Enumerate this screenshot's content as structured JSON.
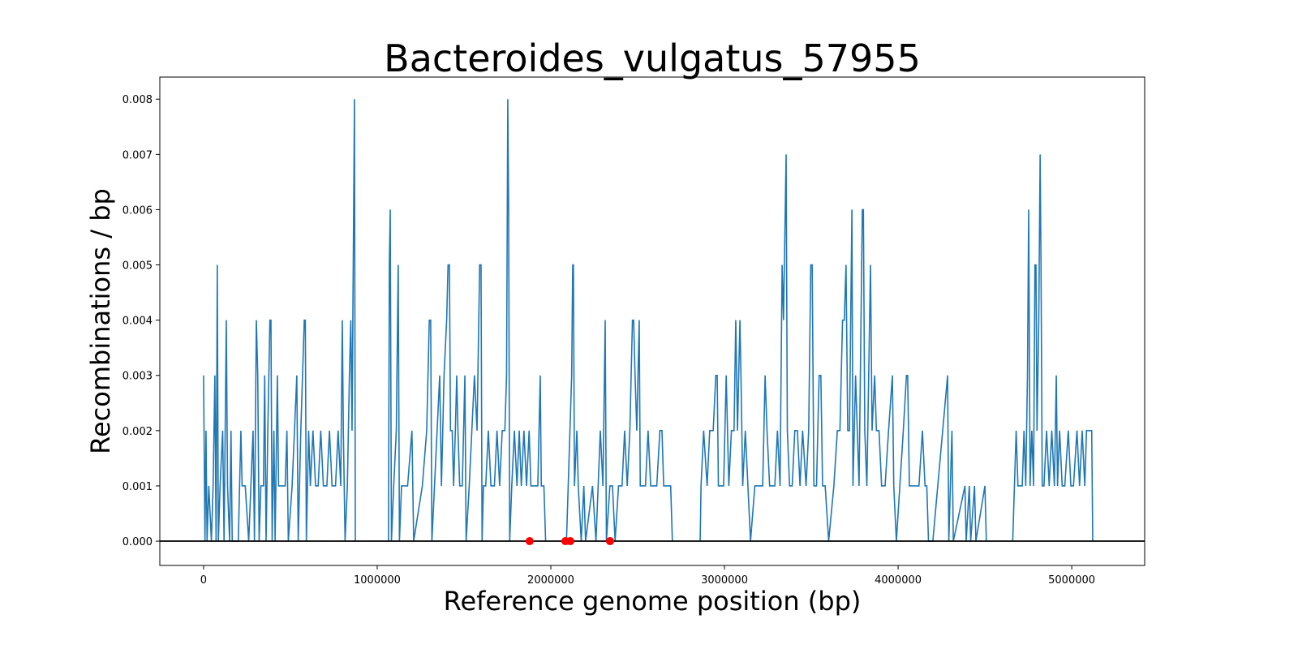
{
  "chart_data": {
    "type": "line",
    "title": "Bacteroides_vulgatus_57955",
    "xlabel": "Reference genome position (bp)",
    "ylabel": "Recombinations / bp",
    "xlim": [
      -252000,
      5420000
    ],
    "ylim": [
      -0.00044,
      0.0084
    ],
    "xticks": [
      0,
      1000000,
      2000000,
      3000000,
      4000000,
      5000000
    ],
    "yticks": [
      {
        "value": 0,
        "label": "0.000"
      },
      {
        "value": 0.001,
        "label": "0.001"
      },
      {
        "value": 0.002,
        "label": "0.002"
      },
      {
        "value": 0.003,
        "label": "0.003"
      },
      {
        "value": 0.004,
        "label": "0.004"
      },
      {
        "value": 0.005,
        "label": "0.005"
      },
      {
        "value": 0.006,
        "label": "0.006"
      },
      {
        "value": 0.007,
        "label": "0.007"
      },
      {
        "value": 0.008,
        "label": "0.008"
      }
    ],
    "hline": 0,
    "hline_color": "#000000",
    "series": [
      {
        "color": "#1f77b4",
        "x": [
          0,
          8000,
          14000,
          20000,
          30000,
          45000,
          55000,
          65000,
          72000,
          79000,
          85000,
          95000,
          110000,
          118000,
          131000,
          138000,
          150000,
          158000,
          165000,
          200000,
          215000,
          222000,
          240000,
          260000,
          285000,
          293000,
          304000,
          312000,
          320000,
          330000,
          345000,
          352000,
          360000,
          370000,
          382000,
          388000,
          395000,
          405000,
          412000,
          425000,
          432000,
          450000,
          470000,
          480000,
          488000,
          510000,
          537000,
          545000,
          560000,
          580000,
          586000,
          592000,
          605000,
          615000,
          630000,
          645000,
          660000,
          675000,
          690000,
          710000,
          725000,
          740000,
          760000,
          775000,
          790000,
          799000,
          805000,
          815000,
          828000,
          840000,
          848000,
          855000,
          869000,
          874000,
          970000,
          1065000,
          1070000,
          1075000,
          1082000,
          1095000,
          1110000,
          1121000,
          1128000,
          1140000,
          1175000,
          1200000,
          1210000,
          1260000,
          1285000,
          1300000,
          1308000,
          1315000,
          1330000,
          1345000,
          1360000,
          1370000,
          1385000,
          1400000,
          1408000,
          1416000,
          1422000,
          1432000,
          1440000,
          1450000,
          1458000,
          1465000,
          1475000,
          1490000,
          1505000,
          1512000,
          1530000,
          1545000,
          1560000,
          1575000,
          1590000,
          1598000,
          1604000,
          1612000,
          1625000,
          1640000,
          1655000,
          1675000,
          1690000,
          1705000,
          1720000,
          1735000,
          1745000,
          1752000,
          1757000,
          1763000,
          1775000,
          1790000,
          1805000,
          1818000,
          1830000,
          1845000,
          1860000,
          1875000,
          1885000,
          1900000,
          1925000,
          1939000,
          1945000,
          1960000,
          1970000,
          2030000,
          2090000,
          2110000,
          2120000,
          2126000,
          2130000,
          2136000,
          2150000,
          2158000,
          2175000,
          2190000,
          2200000,
          2240000,
          2260000,
          2285000,
          2300000,
          2313000,
          2320000,
          2340000,
          2355000,
          2370000,
          2390000,
          2410000,
          2425000,
          2440000,
          2455000,
          2470000,
          2477000,
          2485000,
          2495000,
          2509000,
          2515000,
          2530000,
          2545000,
          2560000,
          2575000,
          2590000,
          2610000,
          2628000,
          2640000,
          2650000,
          2670000,
          2690000,
          2700000,
          2780000,
          2860000,
          2865000,
          2880000,
          2900000,
          2915000,
          2935000,
          2950000,
          2958000,
          2965000,
          2980000,
          2995000,
          3010000,
          3025000,
          3040000,
          3055000,
          3065000,
          3075000,
          3089000,
          3095000,
          3105000,
          3120000,
          3135000,
          3150000,
          3175000,
          3200000,
          3220000,
          3234000,
          3245000,
          3260000,
          3275000,
          3290000,
          3305000,
          3320000,
          3332000,
          3340000,
          3355000,
          3362000,
          3375000,
          3390000,
          3405000,
          3420000,
          3435000,
          3450000,
          3470000,
          3485000,
          3497000,
          3505000,
          3515000,
          3530000,
          3545000,
          3555000,
          3565000,
          3580000,
          3600000,
          3630000,
          3650000,
          3665000,
          3680000,
          3690000,
          3700000,
          3710000,
          3720000,
          3734000,
          3740000,
          3755000,
          3765000,
          3775000,
          3794000,
          3800000,
          3808000,
          3820000,
          3841000,
          3850000,
          3865000,
          3875000,
          3890000,
          3905000,
          3925000,
          3945000,
          3967000,
          3975000,
          3990000,
          4010000,
          4030000,
          4048000,
          4055000,
          4065000,
          4080000,
          4100000,
          4120000,
          4140000,
          4155000,
          4165000,
          4175000,
          4200000,
          4285000,
          4292000,
          4310000,
          4318000,
          4385000,
          4392000,
          4410000,
          4418000,
          4440000,
          4448000,
          4500000,
          4508000,
          4580000,
          4660000,
          4670000,
          4680000,
          4690000,
          4700000,
          4715000,
          4725000,
          4735000,
          4745000,
          4752000,
          4760000,
          4770000,
          4780000,
          4788000,
          4794000,
          4800000,
          4810000,
          4818000,
          4823000,
          4830000,
          4840000,
          4855000,
          4870000,
          4885000,
          4900000,
          4911000,
          4918000,
          4930000,
          4945000,
          4960000,
          4980000,
          4995000,
          5010000,
          5030000,
          5045000,
          5060000,
          5075000,
          5085000,
          5095000,
          5105000,
          5115000,
          5121000
        ],
        "values": [
          0.003,
          0,
          0.002,
          0,
          0.001,
          0,
          0.001,
          0.003,
          0,
          0.005,
          0,
          0.001,
          0.002,
          0,
          0.004,
          0.001,
          0,
          0.002,
          0,
          0,
          0.002,
          0.001,
          0.001,
          0,
          0.002,
          0,
          0.004,
          0.003,
          0,
          0.001,
          0.001,
          0.003,
          0,
          0.002,
          0.004,
          0.004,
          0,
          0.002,
          0,
          0.003,
          0.001,
          0.001,
          0.001,
          0.002,
          0,
          0.001,
          0.003,
          0,
          0.002,
          0.004,
          0.004,
          0,
          0.002,
          0.001,
          0.002,
          0.001,
          0.001,
          0.002,
          0.001,
          0.001,
          0.002,
          0.001,
          0.001,
          0.002,
          0.001,
          0.004,
          0.002,
          0,
          0.001,
          0.003,
          0.004,
          0.002,
          0.008,
          0,
          null,
          0,
          0.005,
          0.006,
          0,
          0.001,
          0.002,
          0.005,
          0,
          0.001,
          0.001,
          0.002,
          0,
          0.001,
          0.002,
          0.004,
          0.004,
          0,
          0.001,
          0.002,
          0.003,
          0.001,
          0.003,
          0.004,
          0.005,
          0.005,
          0.002,
          0.002,
          0.001,
          0.002,
          0.003,
          0.002,
          0.001,
          0.001,
          0.003,
          0,
          0.001,
          0.002,
          0.003,
          0.002,
          0.005,
          0.005,
          0,
          0.001,
          0.001,
          0.002,
          0.001,
          0.001,
          0.002,
          0.001,
          0.002,
          0.002,
          0.003,
          0.008,
          0.006,
          0,
          0.001,
          0.002,
          0.001,
          0.002,
          0.001,
          0.002,
          0.001,
          0.002,
          0.001,
          0.001,
          0.001,
          0.003,
          0.001,
          0.001,
          0,
          null,
          0,
          0.002,
          0.003,
          0.005,
          0.005,
          0.001,
          0.002,
          0.001,
          0,
          0.001,
          0,
          0.001,
          0,
          0.002,
          0.001,
          0.004,
          0,
          0.001,
          0.001,
          0,
          0.001,
          0.001,
          0.002,
          0.001,
          0.002,
          0.004,
          0.004,
          0.003,
          0.002,
          0.004,
          0.001,
          0.001,
          0.001,
          0.002,
          0.001,
          0.001,
          0.001,
          0.002,
          0.002,
          0.001,
          0.001,
          0.001,
          0,
          null,
          0,
          0.001,
          0.002,
          0.001,
          0.002,
          0.002,
          0.003,
          0.003,
          0.001,
          0.001,
          0.001,
          0.003,
          0.001,
          0.002,
          0.002,
          0.004,
          0.002,
          0.004,
          0.003,
          0.001,
          0.002,
          0.001,
          0,
          0.001,
          0.001,
          0.001,
          0.003,
          0.002,
          0.001,
          0.001,
          0.001,
          0.002,
          0.001,
          0.005,
          0.004,
          0.007,
          0.002,
          0.001,
          0.001,
          0.002,
          0.002,
          0.001,
          0.002,
          0.001,
          0.002,
          0.005,
          0.005,
          0.001,
          0.001,
          0.003,
          0.003,
          0.001,
          0.001,
          0,
          0.001,
          0.002,
          0.002,
          0.004,
          0.004,
          0.005,
          0.002,
          0.002,
          0.006,
          0.001,
          0.003,
          0.002,
          0.001,
          0.006,
          0.006,
          0.002,
          0.001,
          0.005,
          0.002,
          0.003,
          0.002,
          0.002,
          0.001,
          0.001,
          0.002,
          0.003,
          0.001,
          0,
          0.001,
          0.002,
          0.003,
          0.003,
          0.001,
          0.001,
          0.001,
          0.001,
          0.002,
          0.001,
          0.001,
          0,
          0,
          0.003,
          0,
          0.002,
          0,
          0.001,
          0,
          0.001,
          0,
          0.001,
          0,
          0.001,
          0,
          null,
          0,
          0.001,
          0.002,
          0.001,
          0.001,
          0.001,
          0.002,
          0.001,
          0.003,
          0.006,
          0.001,
          0.002,
          0.001,
          0.005,
          0.005,
          0.002,
          0.004,
          0.007,
          0.005,
          0.001,
          0.001,
          0.002,
          0.001,
          0.002,
          0.001,
          0.003,
          0.001,
          0.002,
          0.001,
          0.001,
          0.002,
          0.001,
          0.001,
          0.002,
          0.001,
          0.002,
          0.001,
          0.002,
          0.002,
          0.002,
          0.002,
          0
        ]
      },
      {
        "type": "scatter",
        "color": "#ff0000",
        "x": [
          1878000,
          2084000,
          2112000,
          2341000
        ],
        "values": [
          0,
          0,
          0,
          0
        ]
      }
    ]
  }
}
